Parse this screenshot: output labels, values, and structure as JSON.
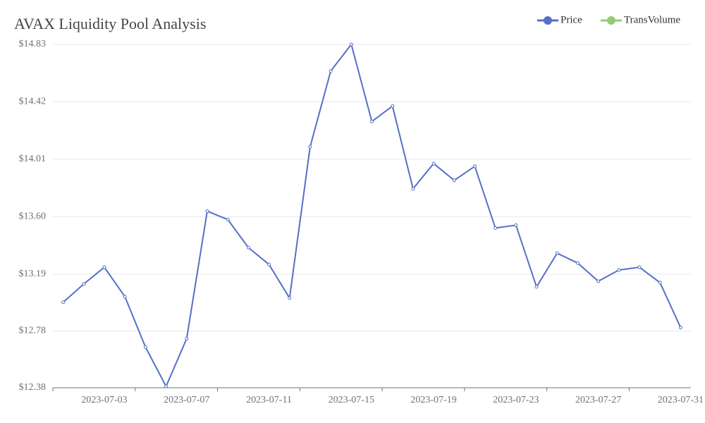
{
  "chart_data": {
    "type": "line",
    "title": "AVAX Liquidity Pool Analysis",
    "categories": [
      null,
      null,
      "2023-07-03",
      null,
      null,
      null,
      "2023-07-07",
      null,
      null,
      null,
      "2023-07-11",
      null,
      null,
      null,
      "2023-07-15",
      null,
      null,
      null,
      "2023-07-19",
      null,
      null,
      null,
      "2023-07-23",
      null,
      null,
      null,
      "2023-07-27",
      null,
      null,
      null,
      "2023-07-31"
    ],
    "series": [
      {
        "name": "Price",
        "color": "#5470c6",
        "values": [
          12.99,
          13.12,
          13.24,
          13.03,
          12.67,
          12.39,
          12.73,
          13.64,
          13.58,
          13.38,
          13.26,
          13.02,
          14.1,
          14.64,
          14.83,
          14.28,
          14.39,
          13.8,
          13.98,
          13.86,
          13.96,
          13.52,
          13.54,
          13.1,
          13.34,
          13.27,
          13.14,
          13.22,
          13.24,
          13.13,
          12.81
        ]
      },
      {
        "name": "TransVolume",
        "color": "#91cc75",
        "values": [
          null,
          null,
          null,
          null,
          null,
          null,
          null,
          null,
          null,
          null,
          null,
          null,
          null,
          null,
          null,
          null,
          null,
          null,
          null,
          null,
          null,
          null,
          null,
          null,
          null,
          null,
          null,
          null,
          null,
          null,
          null
        ]
      }
    ],
    "ylim": [
      12.38,
      14.83
    ],
    "yticks": [
      {
        "value": 12.38,
        "label": "$12.38"
      },
      {
        "value": 12.785,
        "label": "$12.78"
      },
      {
        "value": 13.19,
        "label": "$13.19"
      },
      {
        "value": 13.6,
        "label": "$13.60"
      },
      {
        "value": 14.01,
        "label": "$14.01"
      },
      {
        "value": 14.42,
        "label": "$14.42"
      },
      {
        "value": 14.83,
        "label": "$14.83"
      }
    ],
    "grid": true,
    "legend_position": "top-right"
  }
}
